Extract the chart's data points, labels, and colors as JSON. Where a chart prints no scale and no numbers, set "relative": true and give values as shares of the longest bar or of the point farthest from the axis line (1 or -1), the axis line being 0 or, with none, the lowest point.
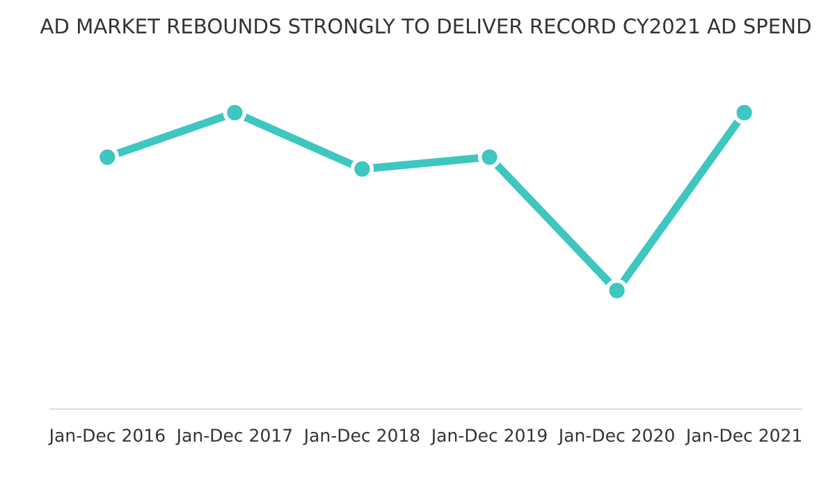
{
  "chart_data": {
    "type": "line",
    "title": "AD MARKET REBOUNDS STRONGLY TO DELIVER RECORD CY2021 AD SPEND",
    "categories": [
      "Jan-Dec 2016",
      "Jan-Dec 2017",
      "Jan-Dec 2018",
      "Jan-Dec 2019",
      "Jan-Dec 2020",
      "Jan-Dec 2021"
    ],
    "relative": true,
    "marker": "circle",
    "line_style": "solid",
    "series": [
      {
        "color": "#3ec6c1",
        "values": [
          0.85,
          1.0,
          0.81,
          0.85,
          0.4,
          1.0
        ]
      }
    ]
  }
}
